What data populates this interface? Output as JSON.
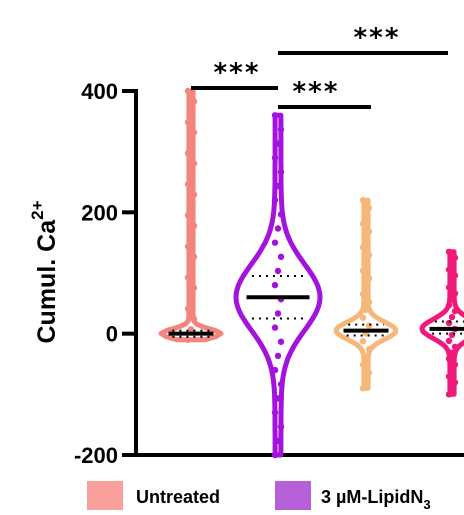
{
  "chart_data": {
    "type": "violin",
    "ylabel": "Cumul. Ca",
    "ylabel_superscript": "2+",
    "ylim": [
      -200,
      400
    ],
    "yticks": [
      {
        "value": 400,
        "label": "400"
      },
      {
        "value": 200,
        "label": "200"
      },
      {
        "value": 0,
        "label": "0"
      },
      {
        "value": -200,
        "label": "-200"
      }
    ],
    "series": [
      {
        "key": "untreated",
        "name": "Untreated",
        "color": "#f4857c",
        "min": -10,
        "max": 400,
        "median": 0,
        "q1": -5,
        "q3": 5
      },
      {
        "key": "lipidn3",
        "name": "3 µM-LipidN3",
        "color": "#a313de",
        "min": -200,
        "max": 360,
        "median": 60,
        "q1": 25,
        "q3": 95
      },
      {
        "key": "group3",
        "color": "#f6b77a",
        "min": -90,
        "max": 220,
        "median": 5,
        "q1": -3,
        "q3": 15
      },
      {
        "key": "group4",
        "color": "#f01a7c",
        "min": -100,
        "max": 135,
        "median": 8,
        "q1": 0,
        "q3": 20
      }
    ],
    "significance": [
      {
        "label": "***",
        "from": "untreated",
        "to": "lipidn3"
      },
      {
        "label": "***",
        "from": "lipidn3",
        "to": "group3"
      },
      {
        "label": "***",
        "from": "lipidn3",
        "to": "group4"
      }
    ],
    "legend": [
      {
        "label": "Untreated",
        "subscript": "",
        "color": "#f9a09a"
      },
      {
        "label": "3 µM-LipidN",
        "subscript": "3",
        "color": "#b55fd8"
      }
    ]
  }
}
